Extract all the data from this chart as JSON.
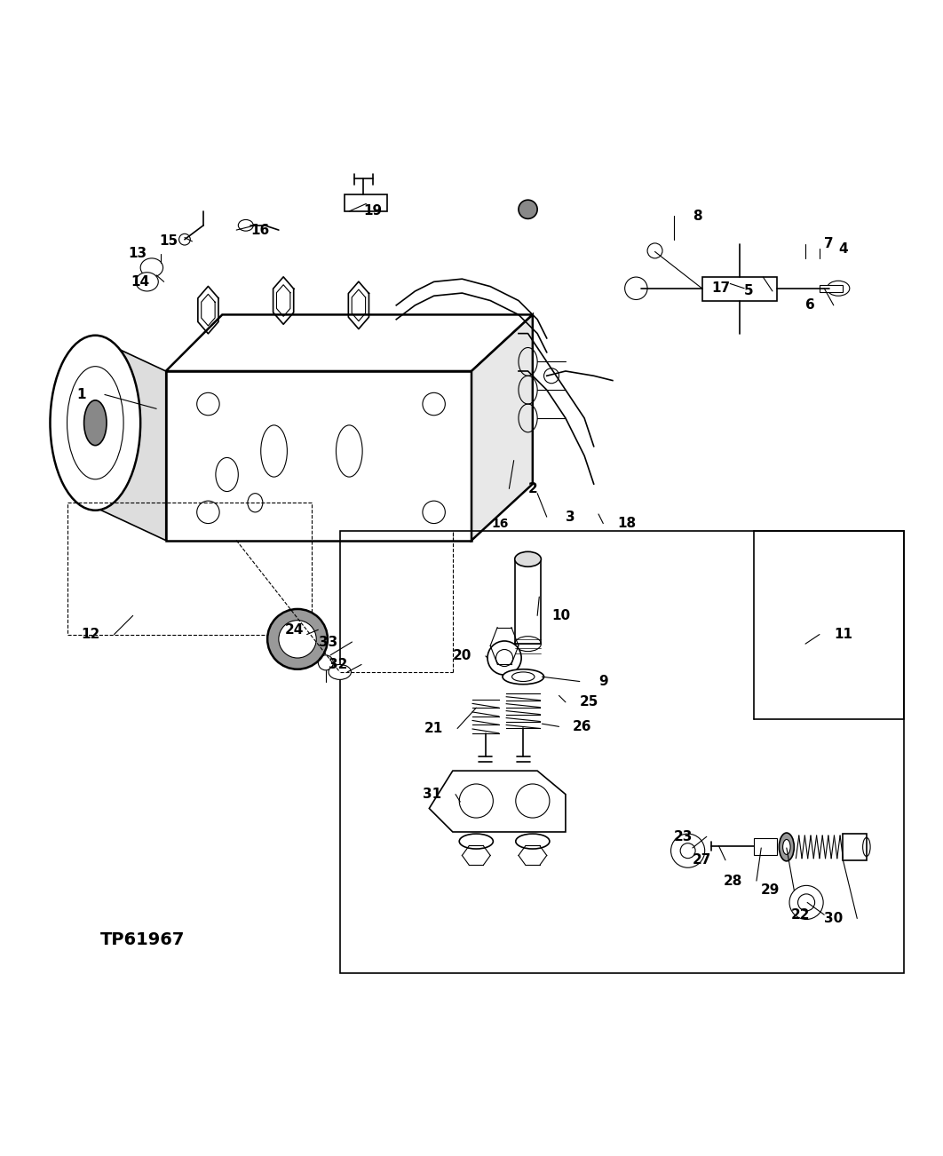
{
  "bg_color": "#ffffff",
  "line_color": "#000000",
  "text_color": "#000000",
  "figure_width": 10.62,
  "figure_height": 13.02,
  "watermark": "TP61967"
}
